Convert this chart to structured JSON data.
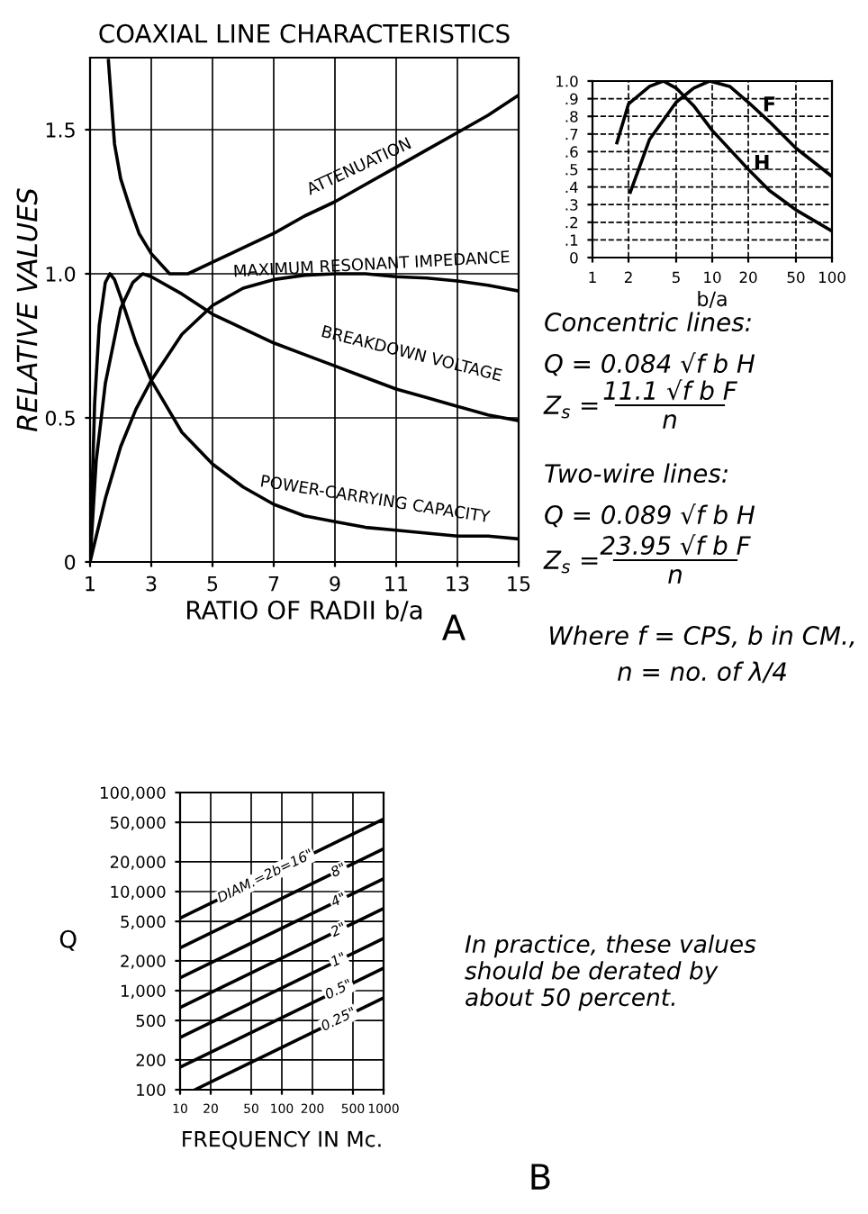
{
  "chart_data": [
    {
      "type": "line",
      "title": "COAXIAL LINE CHARACTERISTICS",
      "xlabel": "RATIO OF RADII b/a",
      "ylabel": "RELATIVE VALUES",
      "xlim": [
        1,
        15
      ],
      "ylim": [
        0,
        1.75
      ],
      "xticks": [
        1,
        3,
        5,
        7,
        9,
        11,
        13,
        15
      ],
      "yticks": [
        0,
        0.5,
        {
          "value": 1,
          "label": "1.0"
        },
        1.5
      ],
      "grid": true,
      "annotations": [
        "A"
      ],
      "series": [
        {
          "name": "ATTENUATION",
          "color": "#000000",
          "x": [
            1.6,
            1.8,
            2,
            2.3,
            2.6,
            3,
            3.6,
            4.2,
            5,
            6,
            7,
            8,
            9,
            10,
            11,
            12,
            13,
            14,
            15
          ],
          "values": [
            1.74,
            1.45,
            1.33,
            1.23,
            1.14,
            1.07,
            1.0,
            1.0,
            1.04,
            1.09,
            1.14,
            1.2,
            1.25,
            1.31,
            1.37,
            1.43,
            1.49,
            1.55,
            1.62
          ]
        },
        {
          "name": "MAXIMUM RESONANT IMPEDANCE",
          "color": "#000000",
          "x": [
            1,
            1.5,
            2,
            2.5,
            3,
            4,
            5,
            6,
            7,
            8,
            9,
            10,
            11,
            12,
            13,
            14,
            15
          ],
          "values": [
            0,
            0.22,
            0.4,
            0.53,
            0.63,
            0.79,
            0.89,
            0.95,
            0.98,
            0.995,
            1.0,
            1.0,
            0.99,
            0.985,
            0.975,
            0.96,
            0.94
          ]
        },
        {
          "name": "BREAKDOWN VOLTAGE",
          "color": "#000000",
          "x": [
            1,
            1.2,
            1.5,
            2,
            2.4,
            2.72,
            3,
            4,
            5,
            6,
            7,
            8,
            9,
            10,
            11,
            12,
            13,
            14,
            15
          ],
          "values": [
            0,
            0.35,
            0.62,
            0.88,
            0.97,
            1.0,
            0.99,
            0.93,
            0.86,
            0.81,
            0.76,
            0.72,
            0.68,
            0.64,
            0.6,
            0.57,
            0.54,
            0.51,
            0.49
          ]
        },
        {
          "name": "POWER-CARRYING CAPACITY",
          "color": "#000000",
          "x": [
            1,
            1.15,
            1.3,
            1.5,
            1.65,
            1.8,
            2,
            2.5,
            3,
            4,
            5,
            6,
            7,
            8,
            9,
            10,
            11,
            12,
            13,
            14,
            15
          ],
          "values": [
            0,
            0.55,
            0.82,
            0.97,
            1.0,
            0.98,
            0.92,
            0.76,
            0.63,
            0.45,
            0.34,
            0.26,
            0.2,
            0.16,
            0.14,
            0.12,
            0.11,
            0.1,
            0.09,
            0.09,
            0.08
          ]
        }
      ]
    },
    {
      "type": "line",
      "xlabel": "b/a",
      "log": "x",
      "xlim": [
        1,
        100
      ],
      "ylim": [
        0,
        1
      ],
      "xticks": [
        1,
        2,
        5,
        10,
        20,
        50,
        100
      ],
      "yticks": [
        0,
        {
          "value": 0.1,
          "label": ".1"
        },
        {
          "value": 0.2,
          "label": ".2"
        },
        {
          "value": 0.3,
          "label": ".3"
        },
        {
          "value": 0.4,
          "label": ".4"
        },
        {
          "value": 0.5,
          "label": ".5"
        },
        {
          "value": 0.6,
          "label": ".6"
        },
        {
          "value": 0.7,
          "label": ".7"
        },
        {
          "value": 0.8,
          "label": ".8"
        },
        {
          "value": 0.9,
          "label": ".9"
        },
        {
          "value": 1,
          "label": "1.0"
        }
      ],
      "grid": true,
      "series": [
        {
          "name": "F",
          "color": "#000000",
          "x": [
            2.07,
            3,
            5,
            7,
            9.5,
            14,
            20,
            30,
            50,
            100
          ],
          "values": [
            0.37,
            0.67,
            0.88,
            0.96,
            1.0,
            0.97,
            0.88,
            0.77,
            0.62,
            0.46
          ]
        },
        {
          "name": "H",
          "color": "#000000",
          "x": [
            1.6,
            2,
            3,
            3.9,
            5,
            7,
            10,
            20,
            30,
            50,
            100
          ],
          "values": [
            0.65,
            0.87,
            0.97,
            1.0,
            0.96,
            0.86,
            0.72,
            0.5,
            0.38,
            0.27,
            0.15
          ]
        }
      ]
    },
    {
      "type": "other",
      "annotations": [
        "Concentric lines:",
        "Q = 0.084 √f b H",
        "Z$_{s}$ =",
        "11.1 √f b F",
        "n",
        "Two-wire lines:",
        "Q = 0.089 √f b H",
        "Z$_{s}$ =",
        "23.95 √f b F",
        "n",
        "Where f = CPS, b in CM.,",
        "n = no. of λ/4"
      ]
    },
    {
      "type": "line",
      "xlabel": "FREQUENCY IN Mc.",
      "ylabel": "Q",
      "log": "xy",
      "xlim": [
        10,
        1000
      ],
      "ylim": [
        100,
        100000
      ],
      "xticks": [
        10,
        20,
        50,
        100,
        200,
        500,
        1000
      ],
      "yticks": [
        100,
        200,
        500,
        {
          "value": 1000,
          "label": "1,000"
        },
        {
          "value": 2000,
          "label": "2,000"
        },
        {
          "value": 5000,
          "label": "5,000"
        },
        {
          "value": 10000,
          "label": "10,000"
        },
        {
          "value": 20000,
          "label": "20,000"
        },
        {
          "value": 50000,
          "label": "50,000"
        },
        {
          "value": 100000,
          "label": "100,000"
        }
      ],
      "grid": true,
      "annotations": [
        "In practice, these values\nshould be derated by\nabout 50 percent.",
        "B"
      ],
      "series": [
        {
          "name": "DIAM.=2b=16\"",
          "color": "#000000",
          "x": [
            10,
            1000
          ],
          "values": [
            5400,
            54000
          ]
        },
        {
          "name": "8\"",
          "color": "#000000",
          "x": [
            10,
            1000
          ],
          "values": [
            2700,
            27000
          ]
        },
        {
          "name": "4\"",
          "color": "#000000",
          "x": [
            10,
            1000
          ],
          "values": [
            1350,
            13500
          ]
        },
        {
          "name": "2\"",
          "color": "#000000",
          "x": [
            10,
            1000
          ],
          "values": [
            675,
            6750
          ]
        },
        {
          "name": "1\"",
          "color": "#000000",
          "x": [
            10,
            1000
          ],
          "values": [
            337,
            3370
          ]
        },
        {
          "name": "0.5\"",
          "color": "#000000",
          "x": [
            10,
            1000
          ],
          "values": [
            169,
            1690
          ]
        },
        {
          "name": "0.25\"",
          "color": "#000000",
          "x": [
            14,
            1000
          ],
          "values": [
            100,
            845
          ]
        }
      ]
    }
  ]
}
